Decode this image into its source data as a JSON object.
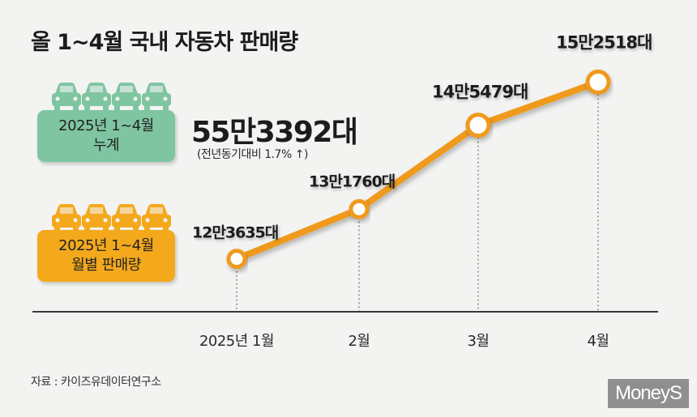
{
  "title": "올 1~4월 국내 자동차 판매량",
  "summary": {
    "cumulative_label_line1": "2025년 1~4월",
    "cumulative_label_line2": "누계",
    "total": "55만3392대",
    "yoy": "(전년동기대비 1.7% ↑)"
  },
  "monthly_label_line1": "2025년 1~4월",
  "monthly_label_line2": "월별 판매량",
  "source": "자료 : 카이즈유데이터연구소",
  "logo": "MoneyS",
  "colors": {
    "line": "#ef9a1c",
    "green_badge": "#7fc5a2",
    "orange_badge": "#f4a91c",
    "background": "#f3f3f2"
  },
  "icons": [
    "car-icon"
  ],
  "chart_data": {
    "type": "line",
    "categories": [
      "2025년 1월",
      "2월",
      "3월",
      "4월"
    ],
    "values": [
      123635,
      131760,
      145479,
      152518
    ],
    "data_labels": [
      "12만3635대",
      "13만1760대",
      "14만5479대",
      "15만2518대"
    ],
    "ylim": [
      115000,
      158000
    ],
    "grid": false,
    "legend": "none"
  }
}
